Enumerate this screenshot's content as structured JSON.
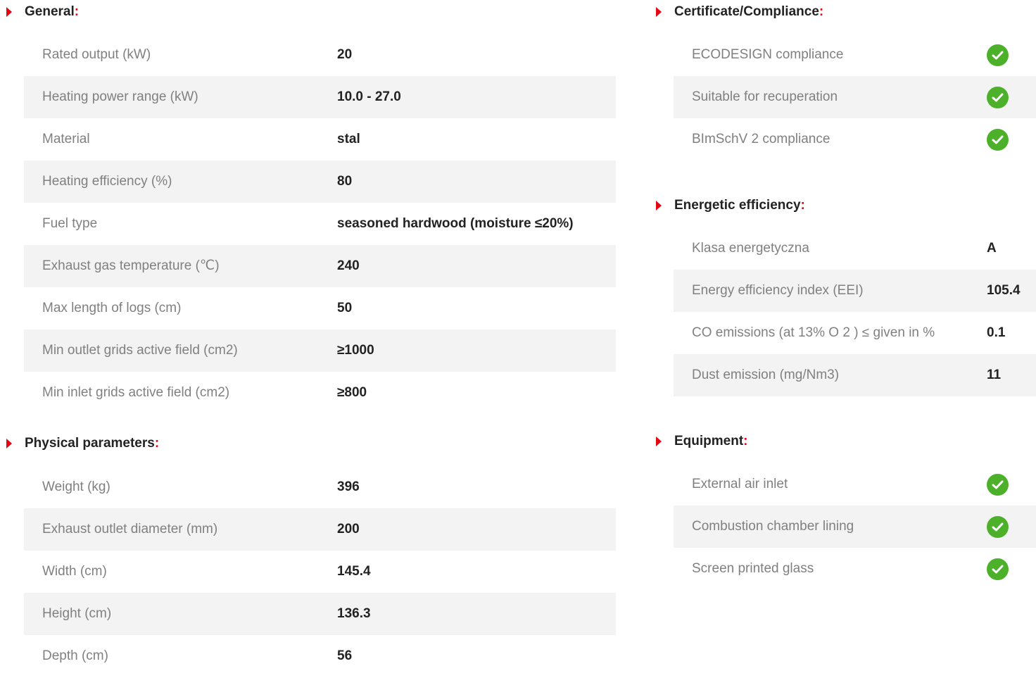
{
  "colors": {
    "accent": "#e30613",
    "check": "#4cb02a",
    "row_shade": "#f3f3f3"
  },
  "general": {
    "title": "General",
    "rows": [
      {
        "label": "Rated output (kW)",
        "value": "20"
      },
      {
        "label": "Heating power range (kW)",
        "value": "10.0 - 27.0"
      },
      {
        "label": "Material",
        "value": "stal"
      },
      {
        "label": "Heating efficiency (%)",
        "value": "80"
      },
      {
        "label": "Fuel type",
        "value": "seasoned hardwood (moisture ≤20%)"
      },
      {
        "label": "Exhaust gas temperature (℃)",
        "value": "240"
      },
      {
        "label": "Max length of logs (cm)",
        "value": "50"
      },
      {
        "label": "Min outlet grids active field (cm2)",
        "value": "≥1000"
      },
      {
        "label": "Min inlet grids active field (cm2)",
        "value": "≥800"
      }
    ]
  },
  "physical": {
    "title": "Physical parameters",
    "rows": [
      {
        "label": "Weight (kg)",
        "value": "396"
      },
      {
        "label": "Exhaust outlet diameter (mm)",
        "value": "200"
      },
      {
        "label": "Width (cm)",
        "value": "145.4"
      },
      {
        "label": "Height (cm)",
        "value": "136.3"
      },
      {
        "label": "Depth (cm)",
        "value": "56"
      }
    ]
  },
  "certificate": {
    "title": "Certificate/Compliance",
    "rows": [
      {
        "label": "ECODESIGN compliance",
        "icon": "check-circle-icon"
      },
      {
        "label": "Suitable for recuperation",
        "icon": "check-circle-icon"
      },
      {
        "label": "BImSchV 2 compliance",
        "icon": "check-circle-icon"
      }
    ]
  },
  "energetic": {
    "title": "Energetic efficiency",
    "rows": [
      {
        "label": "Klasa energetyczna",
        "value": "A"
      },
      {
        "label": "Energy efficiency index (EEI)",
        "value": "105.4"
      },
      {
        "label": "CO emissions (at 13% O 2 ) ≤ given in %",
        "value": "0.1"
      },
      {
        "label": "Dust emission (mg/Nm3)",
        "value": "11"
      }
    ]
  },
  "equipment": {
    "title": "Equipment",
    "rows": [
      {
        "label": "External air inlet",
        "icon": "check-circle-icon"
      },
      {
        "label": "Combustion chamber lining",
        "icon": "check-circle-icon"
      },
      {
        "label": "Screen printed glass",
        "icon": "check-circle-icon"
      }
    ]
  },
  "colon": ":"
}
